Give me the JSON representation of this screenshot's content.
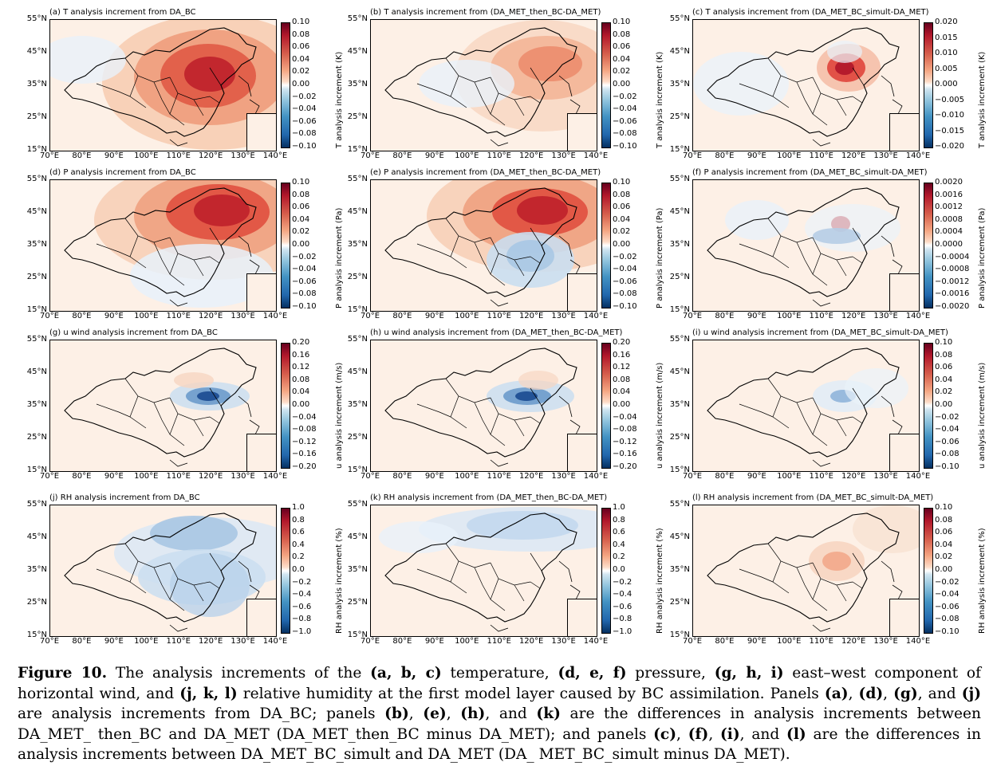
{
  "lat_ticks": [
    "55°N",
    "45°N",
    "35°N",
    "25°N",
    "15°N"
  ],
  "lon_ticks": [
    "70°E",
    "80°E",
    "90°E",
    "100°E",
    "110°E",
    "120°E",
    "130°E",
    "140°E"
  ],
  "panels": [
    {
      "title": "(a) T analysis increment from DA_BC",
      "cbar_label": "T analysis increment (K)",
      "ticks": [
        "0.10",
        "0.08",
        "0.06",
        "0.04",
        "0.02",
        "0.00",
        "−0.02",
        "−0.04",
        "−0.06",
        "−0.08",
        "−0.10"
      ]
    },
    {
      "title": "(b) T analysis increment from (DA_MET_then_BC-DA_MET)",
      "cbar_label": "T analysis increment (K)",
      "ticks": [
        "0.10",
        "0.08",
        "0.06",
        "0.04",
        "0.02",
        "0.00",
        "−0.02",
        "−0.04",
        "−0.06",
        "−0.08",
        "−0.10"
      ]
    },
    {
      "title": "(c) T analysis increment from (DA_MET_BC_simult-DA_MET)",
      "cbar_label": "T analysis increment (K)",
      "ticks": [
        "0.020",
        "0.015",
        "0.010",
        "0.005",
        "0.000",
        "−0.005",
        "−0.010",
        "−0.015",
        "−0.020"
      ]
    },
    {
      "title": "(d) P analysis increment from DA_BC",
      "cbar_label": "P analysis increment (Pa)",
      "ticks": [
        "0.10",
        "0.08",
        "0.06",
        "0.04",
        "0.02",
        "0.00",
        "−0.02",
        "−0.04",
        "−0.06",
        "−0.08",
        "−0.10"
      ]
    },
    {
      "title": "(e) P analysis increment from (DA_MET_then_BC-DA_MET)",
      "cbar_label": "P analysis increment (Pa)",
      "ticks": [
        "0.10",
        "0.08",
        "0.06",
        "0.04",
        "0.02",
        "0.00",
        "−0.02",
        "−0.04",
        "−0.06",
        "−0.08",
        "−0.10"
      ]
    },
    {
      "title": "(f) P analysis increment from (DA_MET_BC_simult-DA_MET)",
      "cbar_label": "P analysis increment (Pa)",
      "ticks": [
        "0.0020",
        "0.0016",
        "0.0012",
        "0.0008",
        "0.0004",
        "0.0000",
        "−0.0004",
        "−0.0008",
        "−0.0012",
        "−0.0016",
        "−0.0020"
      ]
    },
    {
      "title": "(g) u wind analysis increment from DA_BC",
      "cbar_label": "u analysis increment (m/s)",
      "ticks": [
        "0.20",
        "0.16",
        "0.12",
        "0.08",
        "0.04",
        "0.00",
        "−0.04",
        "−0.08",
        "−0.12",
        "−0.16",
        "−0.20"
      ]
    },
    {
      "title": "(h) u wind analysis increment from (DA_MET_then_BC-DA_MET)",
      "cbar_label": "u analysis increment (m/s)",
      "ticks": [
        "0.20",
        "0.16",
        "0.12",
        "0.08",
        "0.04",
        "0.00",
        "−0.04",
        "−0.08",
        "−0.12",
        "−0.16",
        "−0.20"
      ]
    },
    {
      "title": "(i) u wind analysis increment from (DA_MET_BC_simult-DA_MET)",
      "cbar_label": "u analysis increment (m/s)",
      "ticks": [
        "0.10",
        "0.08",
        "0.06",
        "0.04",
        "0.02",
        "0.00",
        "−0.02",
        "−0.04",
        "−0.06",
        "−0.08",
        "−0.10"
      ]
    },
    {
      "title": "(j) RH analysis increment from DA_BC",
      "cbar_label": "RH analysis increment (%)",
      "ticks": [
        "1.0",
        "0.8",
        "0.6",
        "0.4",
        "0.2",
        "0.0",
        "−0.2",
        "−0.4",
        "−0.6",
        "−0.8",
        "−1.0"
      ]
    },
    {
      "title": "(k) RH analysis increment from (DA_MET_then_BC-DA_MET)",
      "cbar_label": "RH analysis increment (%)",
      "ticks": [
        "1.0",
        "0.8",
        "0.6",
        "0.4",
        "0.2",
        "0.0",
        "−0.2",
        "−0.4",
        "−0.6",
        "−0.8",
        "−1.0"
      ]
    },
    {
      "title": "(l) RH analysis increment from (DA_MET_BC_simult-DA_MET)",
      "cbar_label": "RH analysis increment (%)",
      "ticks": [
        "0.10",
        "0.08",
        "0.06",
        "0.04",
        "0.02",
        "0.00",
        "−0.02",
        "−0.04",
        "−0.06",
        "−0.08",
        "−0.10"
      ]
    }
  ],
  "caption": {
    "lead": "Figure 10.",
    "text1": " The analysis increments of the ",
    "b1": "(a, b, c)",
    "text2": " temperature, ",
    "b2": "(d, e, f)",
    "text3": " pressure, ",
    "b3": "(g, h, i)",
    "text4": " east–west component of horizontal wind, and ",
    "b4": "(j, k, l)",
    "text5": " relative humidity at the first model layer caused by BC assimilation. Panels ",
    "b5": "(a)",
    "text6": ", ",
    "b6": "(d)",
    "text7": ", ",
    "b7": "(g)",
    "text8": ", and ",
    "b8": "(j)",
    "text9": " are analysis increments from DA_BC; panels ",
    "b9": "(b)",
    "text10": ", ",
    "b10": "(e)",
    "text11": ", ",
    "b11": "(h)",
    "text12": ", and ",
    "b12": "(k)",
    "text13": " are the differences in analysis increments between DA_MET_ then_BC and DA_MET (DA_MET_then_BC minus DA_MET); and panels ",
    "b13": "(c)",
    "text14": ", ",
    "b14": "(f)",
    "text15": ", ",
    "b15": "(i)",
    "text16": ", and ",
    "b16": "(l)",
    "text17": " are the differences in analysis increments between DA_MET_BC_simult and DA_MET (DA_ MET_BC_simult minus DA_MET)."
  },
  "colors": {
    "pos_strong": "#b2182b",
    "pos_weak": "#fbe3d3",
    "neg_strong": "#2166ac",
    "neg_weak": "#e6f0f8",
    "background": "#fdf0e6"
  }
}
